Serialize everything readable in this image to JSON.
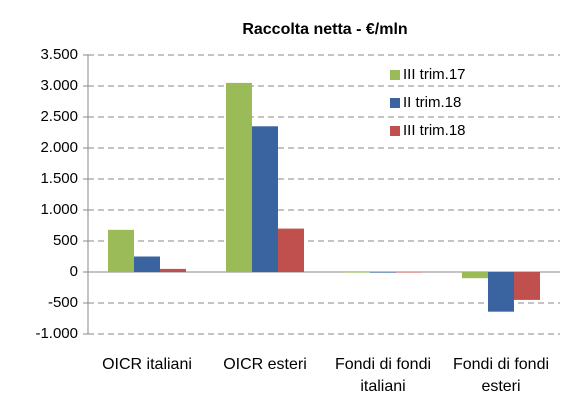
{
  "chart_data": {
    "type": "bar",
    "title": "Raccolta netta - €/mln",
    "categories": [
      "OICR italiani",
      "OICR esteri",
      "Fondi di fondi italiani",
      "Fondi di fondi esteri"
    ],
    "series": [
      {
        "name": "III trim.17",
        "color": "#9bbb59",
        "values": [
          680,
          3050,
          -10,
          -100
        ]
      },
      {
        "name": "II trim.18",
        "color": "#3a64a0",
        "values": [
          250,
          2350,
          -10,
          -640
        ]
      },
      {
        "name": "III trim.18",
        "color": "#c0504d",
        "values": [
          50,
          700,
          -5,
          -450
        ]
      }
    ],
    "ylim": [
      -1000,
      3500
    ],
    "yticks": [
      {
        "value": -1000,
        "label": "-1.000"
      },
      -500,
      0,
      500,
      {
        "value": 1000,
        "label": "1.000"
      },
      {
        "value": 1500,
        "label": "1.500"
      },
      {
        "value": 2000,
        "label": "2.000"
      },
      {
        "value": 2500,
        "label": "2.500"
      },
      {
        "value": 3000,
        "label": "3.000"
      },
      {
        "value": 3500,
        "label": "3.500"
      }
    ],
    "grid": true,
    "legend": "upper right"
  }
}
